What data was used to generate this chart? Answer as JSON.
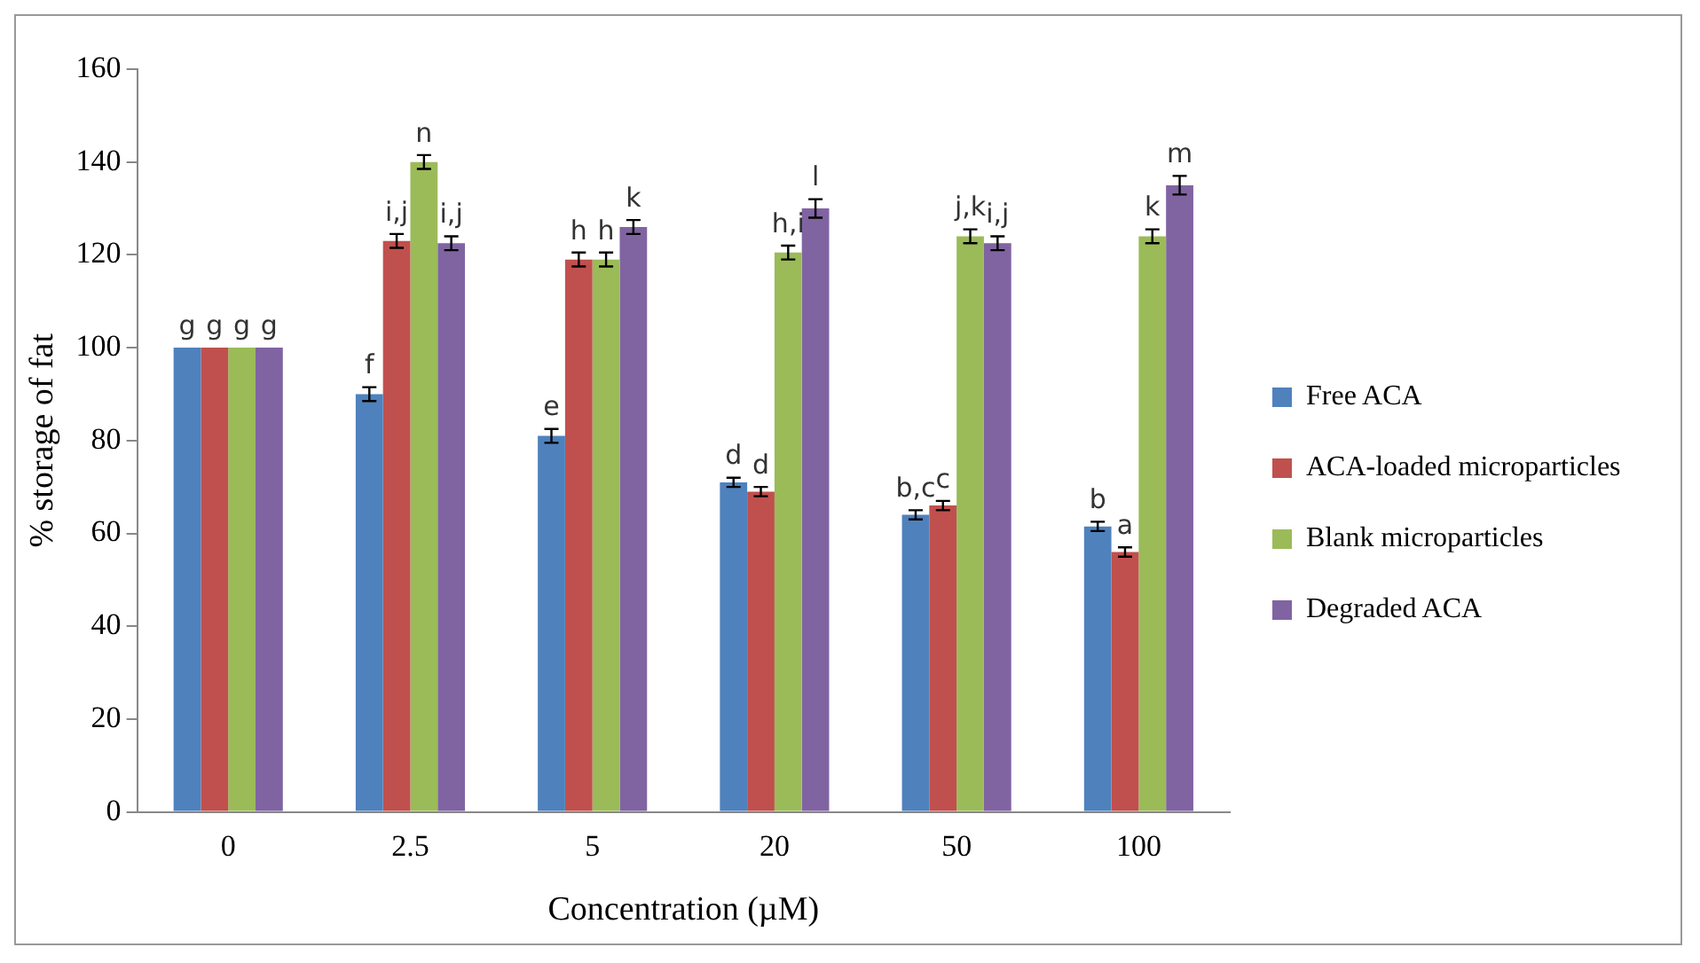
{
  "chart_data": {
    "type": "bar",
    "xlabel": "Concentration (µM)",
    "ylabel": "% storage of fat",
    "categories": [
      "0",
      "2.5",
      "5",
      "20",
      "50",
      "100"
    ],
    "ylim": [
      0,
      160
    ],
    "yticks": [
      0,
      20,
      40,
      60,
      80,
      100,
      120,
      140,
      160
    ],
    "grid": false,
    "legend": "right",
    "series": [
      {
        "name": "Free ACA",
        "color": "#4f81bd",
        "values": [
          100,
          90,
          81,
          71,
          64,
          61.5
        ],
        "errors": [
          null,
          1.5,
          1.5,
          1,
          1,
          1
        ],
        "value_labels": [
          "g",
          "f",
          "e",
          "d",
          "b,c",
          "b"
        ]
      },
      {
        "name": "ACA-loaded microparticles",
        "color": "#c0504d",
        "values": [
          100,
          123,
          119,
          69,
          66,
          56
        ],
        "errors": [
          null,
          1.5,
          1.5,
          1,
          1,
          1
        ],
        "value_labels": [
          "g",
          "i,j",
          "h",
          "d",
          "c",
          "a"
        ]
      },
      {
        "name": "Blank microparticles",
        "color": "#9bbb59",
        "values": [
          100,
          140,
          119,
          120.5,
          124,
          124
        ],
        "errors": [
          null,
          1.5,
          1.5,
          1.5,
          1.5,
          1.5
        ],
        "value_labels": [
          "g",
          "n",
          "h",
          "h,i",
          "j,k",
          "k"
        ]
      },
      {
        "name": "Degraded ACA",
        "color": "#8064a2",
        "values": [
          100,
          122.5,
          126,
          130,
          122.5,
          135
        ],
        "errors": [
          null,
          1.5,
          1.5,
          2,
          1.5,
          2
        ],
        "value_labels": [
          "g",
          "i,j",
          "k",
          "l",
          "i,j",
          "m"
        ]
      }
    ]
  }
}
